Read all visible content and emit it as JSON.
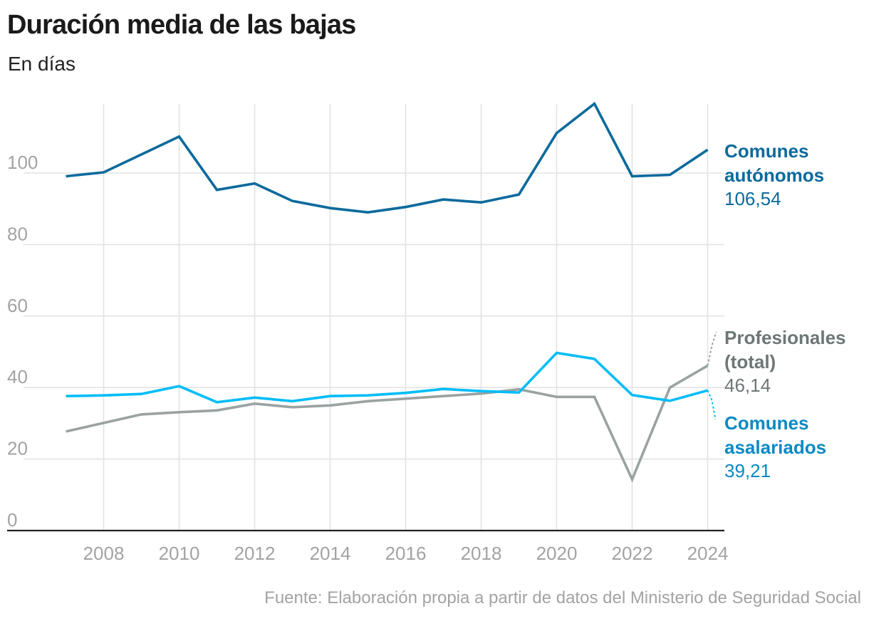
{
  "title": "Duración media de las bajas",
  "subtitle": "En días",
  "source": "Fuente: Elaboración propia a partir de datos del Ministerio de Seguridad Social",
  "chart_data": {
    "type": "line",
    "title": "Duración media de las bajas",
    "subtitle": "En días",
    "xlabel": "",
    "ylabel": "",
    "x": [
      2007,
      2008,
      2009,
      2010,
      2011,
      2012,
      2013,
      2014,
      2015,
      2016,
      2017,
      2018,
      2019,
      2020,
      2021,
      2022,
      2023,
      2024
    ],
    "x_ticks": [
      "2008",
      "2010",
      "2012",
      "2014",
      "2016",
      "2018",
      "2020",
      "2022",
      "2024"
    ],
    "x_tick_values": [
      2008,
      2010,
      2012,
      2014,
      2016,
      2018,
      2020,
      2022,
      2024
    ],
    "y_ticks": [
      "0",
      "20",
      "40",
      "60",
      "80",
      "100"
    ],
    "y_tick_values": [
      0,
      20,
      40,
      60,
      80,
      100
    ],
    "xlim": [
      2007,
      2024
    ],
    "ylim": [
      0,
      120
    ],
    "grid": true,
    "legend": "direct labels at right end of lines",
    "series": [
      {
        "name": "Comunes autónomos",
        "label_lines": [
          "Comunes",
          "autónomos"
        ],
        "last_value_label": "106,54",
        "color": "#0b6a9c",
        "label_color": "#0b6a9c",
        "values": [
          99.1,
          100.2,
          105.2,
          110.2,
          95.3,
          97.1,
          92.2,
          90.2,
          89.0,
          90.5,
          92.6,
          91.8,
          94.0,
          111.2,
          119.4,
          99.1,
          99.5,
          106.54
        ]
      },
      {
        "name": "Profesionales (total)",
        "label_lines": [
          "Profesionales",
          "(total)"
        ],
        "last_value_label": "46,14",
        "color": "#9aa2a2",
        "label_color": "#6e7676",
        "values": [
          27.7,
          30.1,
          32.5,
          33.1,
          33.6,
          35.5,
          34.5,
          35.0,
          36.2,
          36.9,
          37.6,
          38.3,
          39.5,
          37.4,
          37.4,
          14.3,
          40.0,
          46.14
        ]
      },
      {
        "name": "Comunes asalariados",
        "label_lines": [
          "Comunes",
          "asalariados"
        ],
        "last_value_label": "39,21",
        "color": "#00bdf7",
        "label_color": "#0a8ac4",
        "values": [
          37.6,
          37.8,
          38.2,
          40.4,
          35.9,
          37.2,
          36.2,
          37.6,
          37.8,
          38.5,
          39.6,
          39.0,
          38.6,
          49.7,
          48.0,
          37.9,
          36.3,
          39.21
        ]
      }
    ]
  }
}
